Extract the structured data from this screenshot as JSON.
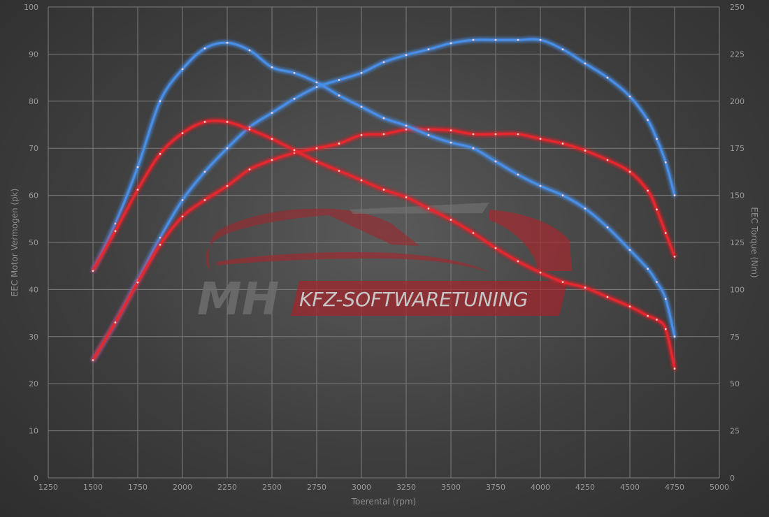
{
  "chart_data": {
    "type": "line",
    "title": "",
    "xlabel": "Toerental (rpm)",
    "ylabel_left": "EEC Motor Vermogen (pk)",
    "ylabel_right": "EEC Torque (Nm)",
    "xlim": [
      1250,
      5000
    ],
    "x_ticks": [
      1250,
      1500,
      1750,
      2000,
      2250,
      2500,
      2750,
      3000,
      3250,
      3500,
      3750,
      4000,
      4250,
      4500,
      4750,
      5000
    ],
    "ylim_left": [
      0,
      100
    ],
    "y_ticks_left": [
      0,
      10,
      20,
      30,
      40,
      50,
      60,
      70,
      80,
      90,
      100
    ],
    "ylim_right": [
      0,
      250
    ],
    "y_ticks_right": [
      0,
      25,
      50,
      75,
      100,
      125,
      150,
      175,
      200,
      225,
      250
    ],
    "grid": true,
    "series": [
      {
        "axis": "left",
        "color": "#4a8fe8",
        "x": [
          1500,
          1625,
          1750,
          1875,
          2000,
          2125,
          2250,
          2375,
          2500,
          2625,
          2750,
          2875,
          3000,
          3125,
          3250,
          3375,
          3500,
          3625,
          3750,
          3875,
          4000,
          4125,
          4250,
          4375,
          4500,
          4600,
          4650,
          4700,
          4750
        ],
        "y": [
          25,
          33,
          42,
          51,
          59,
          65,
          70,
          74.5,
          77.5,
          80.5,
          83,
          84.5,
          86,
          88.3,
          89.8,
          91,
          92.3,
          93,
          93,
          93,
          93,
          91,
          88,
          85,
          81,
          76,
          72,
          67,
          60
        ]
      },
      {
        "axis": "left",
        "color": "#e8262e",
        "x": [
          1500,
          1625,
          1750,
          1875,
          2000,
          2125,
          2250,
          2375,
          2500,
          2625,
          2750,
          2875,
          3000,
          3125,
          3250,
          3375,
          3500,
          3625,
          3750,
          3875,
          4000,
          4125,
          4250,
          4375,
          4500,
          4600,
          4650,
          4700,
          4750
        ],
        "y": [
          25,
          33,
          41.5,
          49.5,
          55.5,
          59,
          62,
          65.5,
          67.5,
          69,
          70,
          71,
          72.8,
          73,
          74,
          74,
          73.8,
          73,
          73,
          73,
          72,
          71,
          69.5,
          67.5,
          65,
          61,
          57,
          52,
          47
        ]
      },
      {
        "axis": "right",
        "color": "#4a8fe8",
        "x": [
          1500,
          1625,
          1750,
          1875,
          2000,
          2125,
          2250,
          2375,
          2500,
          2625,
          2750,
          2875,
          3000,
          3125,
          3250,
          3375,
          3500,
          3625,
          3750,
          3875,
          4000,
          4125,
          4250,
          4375,
          4500,
          4600,
          4650,
          4700,
          4750
        ],
        "y": [
          110,
          135,
          165,
          200,
          217,
          228,
          231,
          227,
          218,
          215,
          210,
          203,
          197,
          191,
          187,
          182,
          178,
          175,
          168,
          161,
          155,
          150,
          143,
          133,
          121,
          111,
          104,
          95,
          75
        ]
      },
      {
        "axis": "right",
        "color": "#e8262e",
        "x": [
          1500,
          1625,
          1750,
          1875,
          2000,
          2125,
          2250,
          2375,
          2500,
          2625,
          2750,
          2875,
          3000,
          3125,
          3250,
          3375,
          3500,
          3625,
          3750,
          3875,
          4000,
          4125,
          4250,
          4375,
          4500,
          4600,
          4650,
          4700,
          4750
        ],
        "y": [
          110,
          131,
          153,
          172,
          183,
          189,
          189,
          185,
          180,
          174,
          168,
          163,
          158,
          153,
          149,
          143,
          137,
          130,
          122,
          115,
          109,
          104,
          101,
          96,
          91,
          86,
          84,
          79,
          58
        ]
      }
    ]
  },
  "watermark": {
    "letters": "MH",
    "text": "KFZ-SOFTWARETUNING",
    "accent": "#b3232a"
  }
}
